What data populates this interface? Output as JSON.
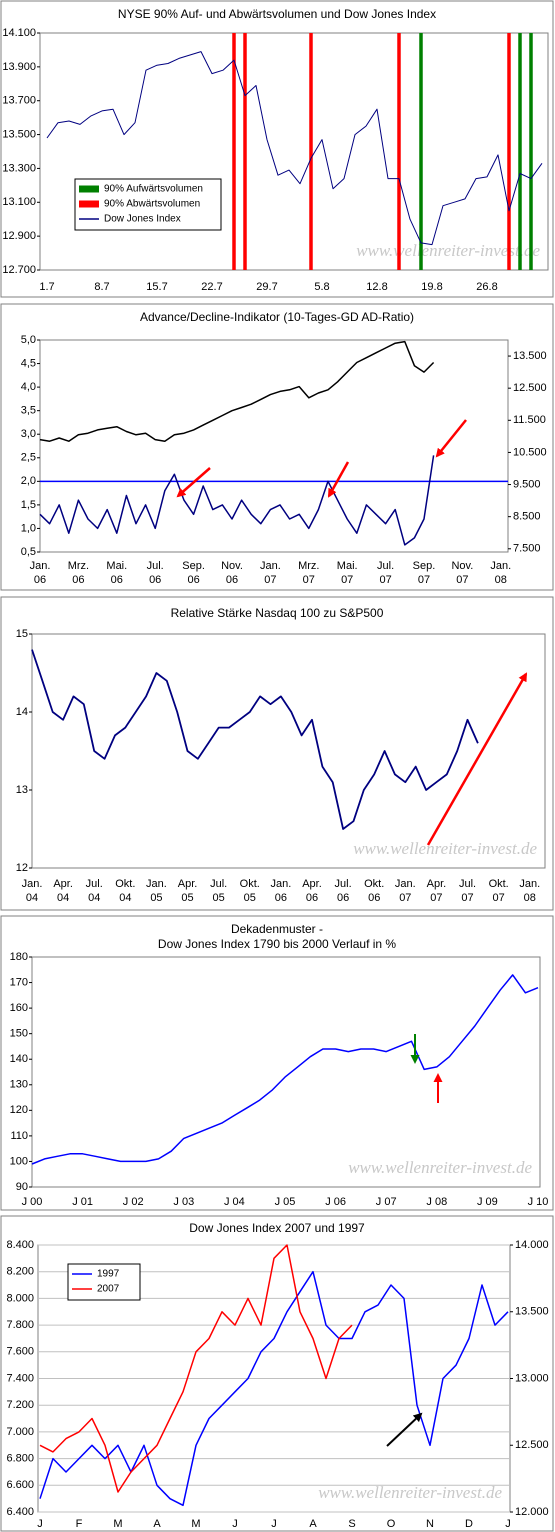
{
  "chart_data": [
    {
      "type": "line",
      "title": "NYSE 90% Auf- und Abwärtsvolumen und Dow Jones Index",
      "watermark": "www.wellenreiter-invest.de",
      "legend": "lower left",
      "categories": [
        "1.7",
        null,
        null,
        null,
        null,
        "8.7",
        null,
        null,
        null,
        null,
        "15.7",
        null,
        null,
        null,
        null,
        "22.7",
        null,
        null,
        null,
        null,
        "29.7",
        null,
        null,
        null,
        null,
        "5.8",
        null,
        null,
        null,
        null,
        "12.8",
        null,
        null,
        null,
        null,
        "19.8",
        null,
        null,
        null,
        null,
        "26.8",
        null,
        null,
        null,
        null,
        null
      ],
      "markers": [
        {
          "name": "90% Aufwärtsvolumen",
          "color": "#008000",
          "at": [
            34,
            43,
            44
          ]
        },
        {
          "name": "90% Abwärtsvolumen",
          "color": "#ff0000",
          "at": [
            17,
            18,
            24,
            32,
            42
          ]
        }
      ],
      "series": [
        {
          "name": "Dow Jones Index",
          "color": "#000080",
          "values": [
            13480,
            13570,
            13580,
            13560,
            13610,
            13640,
            13650,
            13500,
            13570,
            13880,
            13910,
            13920,
            13950,
            13970,
            13990,
            13860,
            13880,
            13940,
            13730,
            13790,
            13470,
            13260,
            13290,
            13210,
            13360,
            13470,
            13180,
            13240,
            13500,
            13550,
            13650,
            13240,
            13240,
            13000,
            12860,
            12850,
            13080,
            13100,
            13120,
            13240,
            13250,
            13380,
            13050,
            13270,
            13240,
            13330
          ]
        }
      ],
      "ylim": [
        12700,
        14100
      ],
      "yticks": [
        {
          "value": 12700,
          "label": "12.700"
        },
        {
          "value": 12900,
          "label": "12.900"
        },
        {
          "value": 13100,
          "label": "13.100"
        },
        {
          "value": 13300,
          "label": "13.300"
        },
        {
          "value": 13500,
          "label": "13.500"
        },
        {
          "value": 13700,
          "label": "13.700"
        },
        {
          "value": 13900,
          "label": "13.900"
        },
        {
          "value": 14100,
          "label": "14.100"
        }
      ],
      "grid": false
    },
    {
      "type": "line",
      "title": "Advance/Decline-Indikator (10-Tages-GD AD-Ratio)",
      "categories": [
        [
          "Jan.",
          "06"
        ],
        null,
        null,
        null,
        [
          "Mrz.",
          "06"
        ],
        null,
        null,
        null,
        [
          "Mai.",
          "06"
        ],
        null,
        null,
        null,
        [
          "Jul.",
          "06"
        ],
        null,
        null,
        null,
        [
          "Sep.",
          "06"
        ],
        null,
        null,
        null,
        [
          "Nov.",
          "06"
        ],
        null,
        null,
        null,
        [
          "Jan.",
          "07"
        ],
        null,
        null,
        null,
        [
          "Mrz.",
          "07"
        ],
        null,
        null,
        null,
        [
          "Mai.",
          "07"
        ],
        null,
        null,
        null,
        [
          "Jul.",
          "07"
        ],
        null,
        null,
        null,
        [
          "Sep.",
          "07"
        ],
        null,
        null,
        null,
        [
          "Nov.",
          "07"
        ],
        null,
        null,
        null,
        [
          "Jan.",
          "08"
        ]
      ],
      "series": [
        {
          "color": "#000080",
          "values": [
            1.3,
            1.1,
            1.5,
            0.9,
            1.6,
            1.2,
            1.0,
            1.4,
            0.9,
            1.7,
            1.1,
            1.5,
            1.0,
            1.8,
            2.15,
            1.6,
            1.3,
            1.9,
            1.4,
            1.5,
            1.2,
            1.6,
            1.3,
            1.1,
            1.4,
            1.5,
            1.2,
            1.3,
            1.0,
            1.4,
            2.0,
            1.6,
            1.2,
            0.9,
            1.5,
            1.3,
            1.1,
            1.4,
            0.65,
            0.8,
            1.2,
            2.55,
            null,
            null,
            null,
            null,
            null,
            null,
            null
          ]
        },
        {
          "color": "#000000",
          "axis": "y2",
          "values": [
            10900,
            10850,
            10950,
            10850,
            11050,
            11100,
            11200,
            11250,
            11300,
            11150,
            11050,
            11100,
            10900,
            10850,
            11050,
            11100,
            11200,
            11350,
            11500,
            11650,
            11800,
            11900,
            12000,
            12150,
            12300,
            12400,
            12450,
            12550,
            12200,
            12350,
            12450,
            12700,
            13000,
            13300,
            13450,
            13600,
            13750,
            13900,
            13950,
            13200,
            13000,
            13300,
            null,
            null,
            null,
            null,
            null,
            null,
            null
          ]
        }
      ],
      "reference_line": {
        "value": 2.0,
        "color": "#0000ff"
      },
      "ylim": [
        0.5,
        5.0
      ],
      "yticks": [
        {
          "value": 0.5,
          "label": "0,5"
        },
        {
          "value": 1.0,
          "label": "1,0"
        },
        {
          "value": 1.5,
          "label": "1,5"
        },
        {
          "value": 2.0,
          "label": "2,0"
        },
        {
          "value": 2.5,
          "label": "2,5"
        },
        {
          "value": 3.0,
          "label": "3,0"
        },
        {
          "value": 3.5,
          "label": "3,5"
        },
        {
          "value": 4.0,
          "label": "4,0"
        },
        {
          "value": 4.5,
          "label": "4,5"
        },
        {
          "value": 5.0,
          "label": "5,0"
        }
      ],
      "y2lim": [
        7400,
        14000
      ],
      "y2ticks": [
        {
          "value": 7500,
          "label": "7.500"
        },
        {
          "value": 8500,
          "label": "8.500"
        },
        {
          "value": 9500,
          "label": "9.500"
        },
        {
          "value": 10500,
          "label": "10.500"
        },
        {
          "value": 11500,
          "label": "11.500"
        },
        {
          "value": 12500,
          "label": "12.500"
        },
        {
          "value": 13500,
          "label": "13.500"
        }
      ],
      "grid": false
    },
    {
      "type": "line",
      "title": "Relative Stärke Nasdaq 100 zu S&P500",
      "watermark": "www.wellenreiter-invest.de",
      "categories": [
        [
          "Jan.",
          "04"
        ],
        null,
        null,
        [
          "Apr.",
          "04"
        ],
        null,
        null,
        [
          "Jul.",
          "04"
        ],
        null,
        null,
        [
          "Okt.",
          "04"
        ],
        null,
        null,
        [
          "Jan.",
          "05"
        ],
        null,
        null,
        [
          "Apr.",
          "05"
        ],
        null,
        null,
        [
          "Jul.",
          "05"
        ],
        null,
        null,
        [
          "Okt.",
          "05"
        ],
        null,
        null,
        [
          "Jan.",
          "06"
        ],
        null,
        null,
        [
          "Apr.",
          "06"
        ],
        null,
        null,
        [
          "Jul.",
          "06"
        ],
        null,
        null,
        [
          "Okt.",
          "06"
        ],
        null,
        null,
        [
          "Jan.",
          "07"
        ],
        null,
        null,
        [
          "Apr.",
          "07"
        ],
        null,
        null,
        [
          "Jul.",
          "07"
        ],
        null,
        null,
        [
          "Okt.",
          "07"
        ],
        null,
        null,
        [
          "Jan.",
          "08"
        ]
      ],
      "series": [
        {
          "color": "#000080",
          "values": [
            14.8,
            14.4,
            14.0,
            13.9,
            14.2,
            14.1,
            13.5,
            13.4,
            13.7,
            13.8,
            14.0,
            14.2,
            14.5,
            14.4,
            14.0,
            13.5,
            13.4,
            13.6,
            13.8,
            13.8,
            13.9,
            14.0,
            14.2,
            14.1,
            14.2,
            14.0,
            13.7,
            13.9,
            13.3,
            13.1,
            12.5,
            12.6,
            13.0,
            13.2,
            13.5,
            13.2,
            13.1,
            13.3,
            13.0,
            13.1,
            13.2,
            13.5,
            13.9,
            13.6,
            null,
            null,
            null,
            null,
            null
          ]
        }
      ],
      "ylim": [
        12,
        15
      ],
      "yticks": [
        12,
        13,
        14,
        15
      ],
      "grid": false
    },
    {
      "type": "line",
      "title": "Dekadenmuster -",
      "subtitle": "Dow Jones Index 1790 bis 2000 Verlauf in %",
      "watermark": "www.wellenreiter-invest.de",
      "categories": [
        "J 00",
        null,
        null,
        null,
        "J 01",
        null,
        null,
        null,
        "J 02",
        null,
        null,
        null,
        "J 03",
        null,
        null,
        null,
        "J 04",
        null,
        null,
        null,
        "J 05",
        null,
        null,
        null,
        "J 06",
        null,
        null,
        null,
        "J 07",
        null,
        null,
        null,
        "J 08",
        null,
        null,
        null,
        "J 09",
        null,
        null,
        null,
        "J 10"
      ],
      "series": [
        {
          "color": "#0000ff",
          "values": [
            99,
            101,
            102,
            103,
            103,
            102,
            101,
            100,
            100,
            100,
            101,
            104,
            109,
            111,
            113,
            115,
            118,
            121,
            124,
            128,
            133,
            137,
            141,
            144,
            144,
            143,
            144,
            144,
            143,
            145,
            147,
            136,
            137,
            141,
            147,
            153,
            160,
            167,
            173,
            166,
            168
          ]
        }
      ],
      "ylim": [
        90,
        180
      ],
      "yticks": [
        90,
        100,
        110,
        120,
        130,
        140,
        150,
        160,
        170,
        180
      ],
      "grid": false
    },
    {
      "type": "line",
      "title": "Dow Jones Index 2007 und 1997",
      "watermark": "www.wellenreiter-invest.de",
      "legend": "upper left",
      "categories": [
        "J",
        null,
        null,
        "F",
        null,
        null,
        "M",
        null,
        null,
        "A",
        null,
        null,
        "M",
        null,
        null,
        "J",
        null,
        null,
        "J",
        null,
        null,
        "A",
        null,
        null,
        "S",
        null,
        null,
        "O",
        null,
        null,
        "N",
        null,
        null,
        "D",
        null,
        null,
        "J"
      ],
      "series": [
        {
          "name": "1997",
          "color": "#0000ff",
          "values": [
            6500,
            6800,
            6700,
            6800,
            6900,
            6800,
            6900,
            6700,
            6900,
            6600,
            6500,
            6450,
            6900,
            7100,
            7200,
            7300,
            7400,
            7600,
            7700,
            7900,
            8050,
            8200,
            7800,
            7700,
            7700,
            7900,
            7950,
            8100,
            8000,
            7200,
            6900,
            7400,
            7500,
            7700,
            8100,
            7800,
            7900
          ]
        },
        {
          "name": "2007",
          "color": "#ff0000",
          "axis": "y2",
          "values": [
            12500,
            12450,
            12550,
            12600,
            12700,
            12500,
            12150,
            12300,
            12400,
            12500,
            12700,
            12900,
            13200,
            13300,
            13500,
            13400,
            13600,
            13400,
            13900,
            14000,
            13500,
            13300,
            13000,
            13300,
            13400,
            null,
            null,
            null,
            null,
            null,
            null,
            null,
            null,
            null,
            null,
            null,
            null
          ]
        }
      ],
      "ylim": [
        6400,
        8400
      ],
      "yticks": [
        {
          "value": 6400,
          "label": "6.400"
        },
        {
          "value": 6600,
          "label": "6.600"
        },
        {
          "value": 6800,
          "label": "6.800"
        },
        {
          "value": 7000,
          "label": "7.000"
        },
        {
          "value": 7200,
          "label": "7.200"
        },
        {
          "value": 7400,
          "label": "7.400"
        },
        {
          "value": 7600,
          "label": "7.600"
        },
        {
          "value": 7800,
          "label": "7.800"
        },
        {
          "value": 8000,
          "label": "8.000"
        },
        {
          "value": 8200,
          "label": "8.200"
        },
        {
          "value": 8400,
          "label": "8.400"
        }
      ],
      "y2lim": [
        12000,
        14000
      ],
      "y2ticks": [
        {
          "value": 12000,
          "label": "12.000"
        },
        {
          "value": 12500,
          "label": "12.500"
        },
        {
          "value": 13000,
          "label": "13.000"
        },
        {
          "value": 13500,
          "label": "13.500"
        },
        {
          "value": 14000,
          "label": "14.000"
        }
      ],
      "grid": true
    }
  ]
}
